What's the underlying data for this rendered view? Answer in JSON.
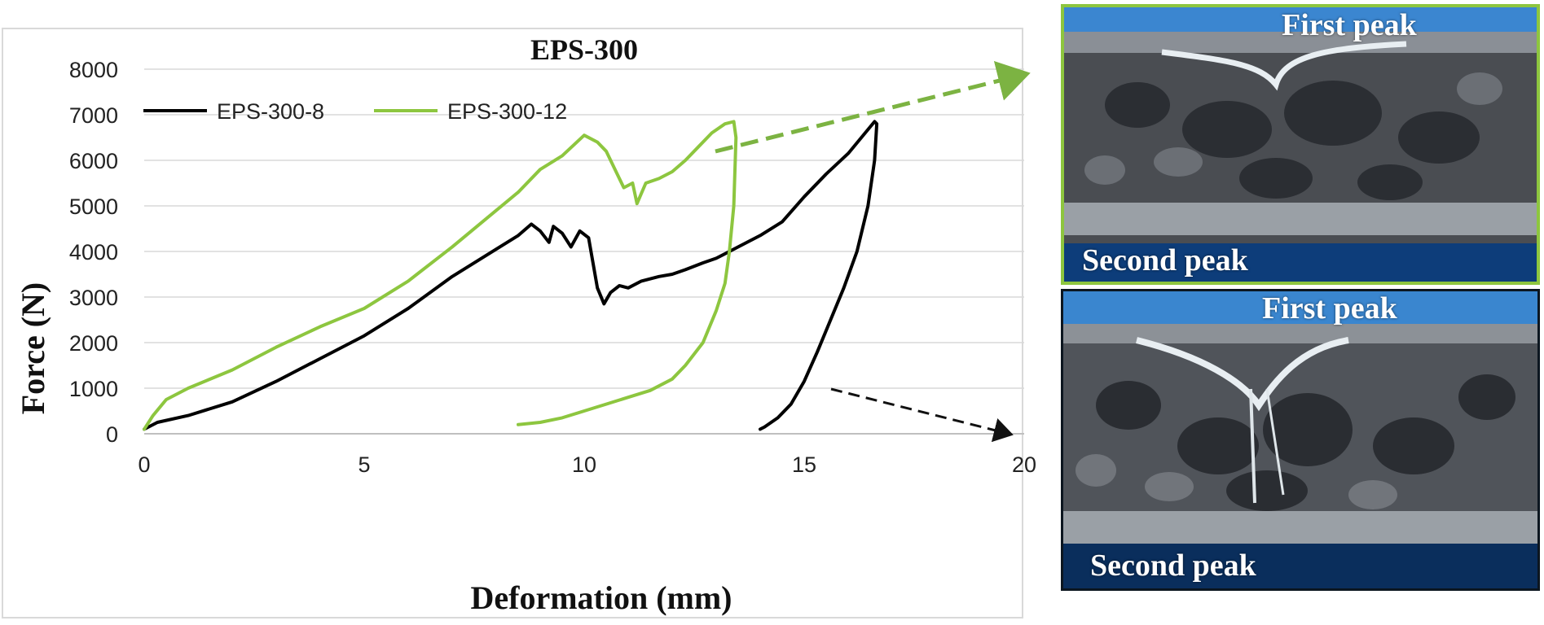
{
  "chart_data": {
    "type": "line",
    "title": "EPS-300",
    "xlabel": "Deformation (mm)",
    "ylabel": "Force (N)",
    "xlim": [
      0,
      20
    ],
    "ylim": [
      0,
      8000
    ],
    "xticks": [
      "0",
      "5",
      "10",
      "15",
      "20"
    ],
    "yticks": [
      "0",
      "1000",
      "2000",
      "3000",
      "4000",
      "5000",
      "6000",
      "7000",
      "8000"
    ],
    "grid": "horizontal",
    "legend_position": "top-left",
    "series": [
      {
        "name": "EPS-300-8",
        "color": "#000000",
        "points": [
          [
            0,
            100
          ],
          [
            0.3,
            250
          ],
          [
            1,
            400
          ],
          [
            2,
            700
          ],
          [
            3,
            1150
          ],
          [
            4,
            1650
          ],
          [
            5,
            2150
          ],
          [
            6,
            2750
          ],
          [
            7,
            3450
          ],
          [
            8,
            4050
          ],
          [
            8.5,
            4350
          ],
          [
            8.8,
            4600
          ],
          [
            9,
            4450
          ],
          [
            9.2,
            4200
          ],
          [
            9.3,
            4550
          ],
          [
            9.5,
            4400
          ],
          [
            9.7,
            4100
          ],
          [
            9.9,
            4450
          ],
          [
            10.1,
            4300
          ],
          [
            10.3,
            3200
          ],
          [
            10.45,
            2850
          ],
          [
            10.6,
            3100
          ],
          [
            10.8,
            3250
          ],
          [
            11,
            3200
          ],
          [
            11.3,
            3350
          ],
          [
            11.7,
            3450
          ],
          [
            12,
            3500
          ],
          [
            12.3,
            3600
          ],
          [
            12.7,
            3750
          ],
          [
            13,
            3850
          ],
          [
            13.5,
            4100
          ],
          [
            14,
            4350
          ],
          [
            14.5,
            4650
          ],
          [
            15,
            5200
          ],
          [
            15.5,
            5700
          ],
          [
            16,
            6150
          ],
          [
            16.3,
            6500
          ],
          [
            16.6,
            6850
          ],
          [
            16.65,
            6800
          ],
          [
            16.6,
            6000
          ],
          [
            16.45,
            5000
          ],
          [
            16.2,
            4000
          ],
          [
            15.9,
            3200
          ],
          [
            15.6,
            2500
          ],
          [
            15.3,
            1800
          ],
          [
            15,
            1150
          ],
          [
            14.7,
            650
          ],
          [
            14.4,
            350
          ],
          [
            14.1,
            150
          ],
          [
            14,
            100
          ]
        ]
      },
      {
        "name": "EPS-300-12",
        "color": "#8dc63f",
        "points": [
          [
            0,
            100
          ],
          [
            0.2,
            400
          ],
          [
            0.5,
            750
          ],
          [
            1,
            1000
          ],
          [
            2,
            1400
          ],
          [
            3,
            1900
          ],
          [
            4,
            2350
          ],
          [
            5,
            2750
          ],
          [
            6,
            3350
          ],
          [
            7,
            4100
          ],
          [
            8,
            4900
          ],
          [
            8.5,
            5300
          ],
          [
            9,
            5800
          ],
          [
            9.5,
            6100
          ],
          [
            10,
            6550
          ],
          [
            10.3,
            6400
          ],
          [
            10.5,
            6200
          ],
          [
            10.7,
            5800
          ],
          [
            10.9,
            5400
          ],
          [
            11.1,
            5500
          ],
          [
            11.2,
            5050
          ],
          [
            11.4,
            5500
          ],
          [
            11.7,
            5600
          ],
          [
            12,
            5750
          ],
          [
            12.3,
            6000
          ],
          [
            12.6,
            6300
          ],
          [
            12.9,
            6600
          ],
          [
            13.2,
            6800
          ],
          [
            13.4,
            6850
          ],
          [
            13.45,
            6500
          ],
          [
            13.4,
            5000
          ],
          [
            13.3,
            4000
          ],
          [
            13.2,
            3300
          ],
          [
            13,
            2700
          ],
          [
            12.7,
            2000
          ],
          [
            12.3,
            1500
          ],
          [
            12,
            1200
          ],
          [
            11.5,
            950
          ],
          [
            11,
            800
          ],
          [
            10.5,
            650
          ],
          [
            10,
            500
          ],
          [
            9.5,
            350
          ],
          [
            9,
            250
          ],
          [
            8.5,
            200
          ]
        ]
      }
    ],
    "annotations": [
      "First peak",
      "Second peak",
      "First peak",
      "Second peak"
    ]
  },
  "photos": {
    "top": {
      "first_peak": "First peak",
      "second_peak": "Second peak",
      "border_color": "#8dc63f"
    },
    "bottom": {
      "first_peak": "First peak",
      "second_peak": "Second peak",
      "border_color": "#0c1620"
    }
  }
}
